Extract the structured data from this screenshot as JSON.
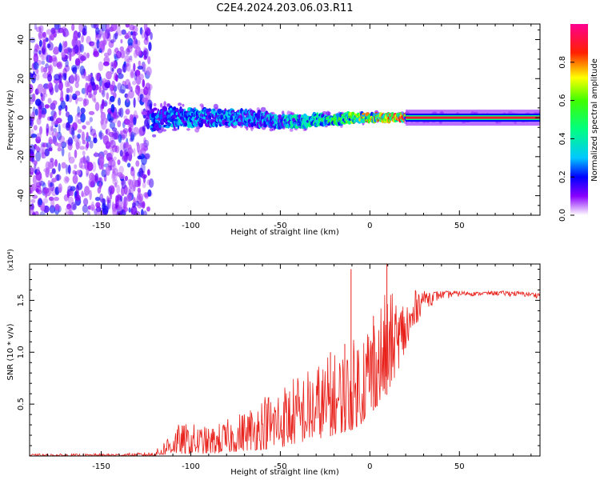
{
  "title": "C2E4.2024.203.06.03.R11",
  "chart_data": [
    {
      "type": "heatmap",
      "xlabel": "Height of straight line (km)",
      "ylabel": "Frequency (Hz)",
      "xlim": [
        -190,
        95
      ],
      "ylim": [
        -50,
        48
      ],
      "x_ticks": [
        "-150",
        "-100",
        "-50",
        "0",
        "50"
      ],
      "y_ticks": [
        "40",
        "20",
        "0",
        "-20",
        "-40"
      ],
      "x_tick_values": [
        -150,
        -100,
        -50,
        0,
        50
      ],
      "y_tick_values": [
        40,
        20,
        0,
        -20,
        -40
      ],
      "colorbar": {
        "label": "Normalized spectral amplitude",
        "range": [
          0,
          1
        ],
        "ticks": [
          "0.0",
          "0.2",
          "0.4",
          "0.6",
          "0.8"
        ],
        "tick_values": [
          0.0,
          0.2,
          0.4,
          0.6,
          0.8
        ]
      },
      "noise_region_x": [
        -190,
        -122
      ],
      "signal_line": {
        "x": [
          -122,
          -110,
          -100,
          -90,
          -80,
          -70,
          -60,
          -50,
          -40,
          -30,
          -20,
          -10,
          0,
          10,
          20,
          30,
          50,
          70,
          95
        ],
        "frequency": [
          -1,
          0,
          0,
          0,
          0,
          0,
          -1,
          -2,
          -2,
          -1,
          -1,
          0,
          0,
          0,
          0,
          0,
          0,
          0,
          0
        ],
        "amplitude": [
          0.25,
          0.3,
          0.3,
          0.3,
          0.3,
          0.28,
          0.3,
          0.35,
          0.4,
          0.45,
          0.5,
          0.6,
          0.7,
          0.8,
          0.85,
          0.9,
          0.9,
          0.9,
          0.9
        ],
        "spread_hz": [
          8,
          7,
          6,
          6,
          5,
          5,
          5,
          4,
          4,
          4,
          3,
          3,
          2.5,
          2.5,
          2,
          2,
          2,
          2,
          2
        ]
      }
    },
    {
      "type": "line",
      "xlabel": "Height of straight line (km)",
      "ylabel": "SNR (10 * v/v)",
      "y_multiplier": "(x10⁴)",
      "xlim": [
        -190,
        95
      ],
      "ylim": [
        0,
        18500
      ],
      "x_ticks": [
        "-150",
        "-100",
        "-50",
        "0",
        "50"
      ],
      "y_ticks": [
        "0.5",
        "1.0",
        "1.5"
      ],
      "x_tick_values": [
        -150,
        -100,
        -50,
        0,
        50
      ],
      "y_tick_values": [
        5000,
        10000,
        15000
      ],
      "series": [
        {
          "color": "#e8211b",
          "envelope_x": [
            -190,
            -160,
            -130,
            -122,
            -117,
            -110,
            -100,
            -90,
            -80,
            -70,
            -60,
            -50,
            -40,
            -30,
            -20,
            -10,
            -5,
            0,
            5,
            10,
            15,
            20,
            25,
            30,
            40,
            50,
            60,
            70,
            80,
            95
          ],
          "envelope_low": [
            0,
            0,
            0,
            0,
            50,
            200,
            200,
            200,
            300,
            500,
            600,
            800,
            1200,
            1600,
            2000,
            2500,
            3000,
            4000,
            5000,
            6000,
            8000,
            10000,
            12000,
            14000,
            15000,
            15300,
            15400,
            15400,
            15300,
            15200
          ],
          "envelope_high": [
            200,
            200,
            300,
            400,
            900,
            3000,
            3200,
            2800,
            3500,
            4500,
            6000,
            7000,
            8000,
            9000,
            10000,
            11000,
            13000,
            14000,
            15000,
            16000,
            15500,
            15500,
            16000,
            15900,
            15900,
            15900,
            15800,
            15900,
            15900,
            15700
          ],
          "spikes": [
            {
              "x": -10.5,
              "y": 18000
            },
            {
              "x": 9.5,
              "y": 18600
            },
            {
              "x": -14,
              "y": 10800
            },
            {
              "x": -22,
              "y": 10000
            },
            {
              "x": 2,
              "y": 13500
            }
          ]
        }
      ]
    }
  ]
}
